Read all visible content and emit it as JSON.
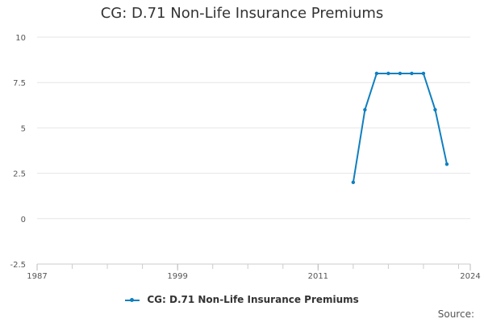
{
  "chart_data": {
    "type": "line",
    "title": "CG: D.71 Non-Life Insurance Premiums",
    "xlabel": "",
    "ylabel": "",
    "xlim": [
      1987,
      2024
    ],
    "ylim": [
      -2.5,
      10
    ],
    "x_ticks": [
      1987,
      1999,
      2011,
      2024
    ],
    "y_ticks": [
      -2.5,
      0,
      2.5,
      5,
      7.5,
      10
    ],
    "y_tick_labels": [
      "-2.5",
      "0",
      "2.5",
      "5",
      "7.5",
      "10"
    ],
    "grid": true,
    "legend_position": "bottom-center",
    "series": [
      {
        "name": "CG: D.71 Non-Life Insurance Premiums",
        "color": "#0f7fbf",
        "x": [
          2014,
          2015,
          2016,
          2017,
          2018,
          2019,
          2020,
          2021,
          2022
        ],
        "y": [
          2,
          6,
          8,
          8,
          8,
          8,
          8,
          6,
          3
        ]
      }
    ]
  },
  "footer": {
    "source_label": "Source:"
  }
}
